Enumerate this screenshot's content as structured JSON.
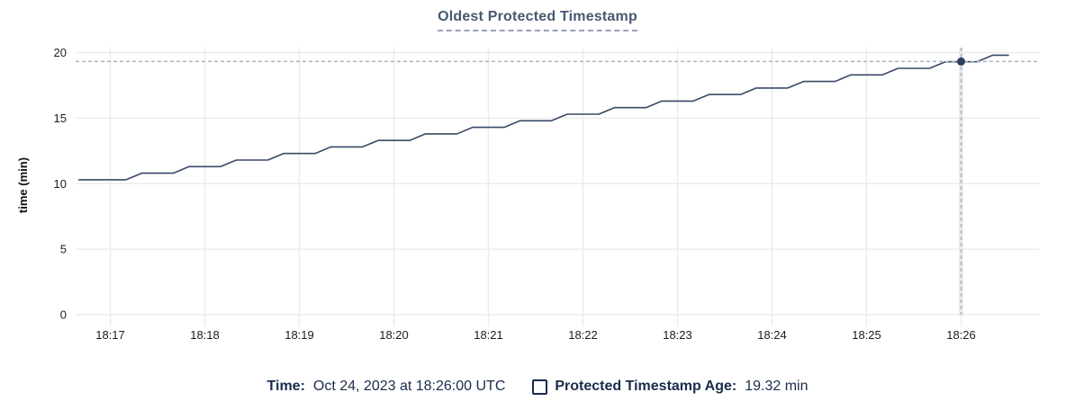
{
  "header": {
    "title": "Oldest Protected Timestamp"
  },
  "chart_data": {
    "type": "line",
    "title": "Oldest Protected Timestamp",
    "xlabel": "",
    "ylabel": "time (min)",
    "ylim": [
      0,
      20
    ],
    "y_ticks": [
      0,
      5,
      10,
      15,
      20
    ],
    "x_ticks": [
      "18:17",
      "18:18",
      "18:19",
      "18:20",
      "18:21",
      "18:22",
      "18:23",
      "18:24",
      "18:25",
      "18:26"
    ],
    "grid": true,
    "legend_position": "bottom",
    "series": [
      {
        "name": "Protected Timestamp Age",
        "color": "#394a67",
        "x_start": "18:16:40",
        "x_step_seconds": 10,
        "values": [
          10.3,
          10.3,
          10.3,
          10.3,
          10.8,
          10.8,
          10.8,
          11.3,
          11.3,
          11.3,
          11.8,
          11.8,
          11.8,
          12.3,
          12.3,
          12.3,
          12.8,
          12.8,
          12.8,
          13.3,
          13.3,
          13.3,
          13.8,
          13.8,
          13.8,
          14.3,
          14.3,
          14.3,
          14.8,
          14.8,
          14.8,
          15.3,
          15.3,
          15.3,
          15.8,
          15.8,
          15.8,
          16.3,
          16.3,
          16.3,
          16.8,
          16.8,
          16.8,
          17.3,
          17.3,
          17.3,
          17.8,
          17.8,
          17.8,
          18.3,
          18.3,
          18.3,
          18.8,
          18.8,
          18.8,
          19.3,
          19.3,
          19.3,
          19.8,
          19.8
        ]
      }
    ],
    "hover": {
      "time": "18:26:00",
      "value": 19.32
    }
  },
  "legend": {
    "time_label": "Time:",
    "time_value": "Oct 24, 2023 at 18:26:00 UTC",
    "series_label": "Protected Timestamp Age:",
    "series_value": "19.32 min"
  },
  "colors": {
    "title": "#475872",
    "legend_text": "#1a2b4d",
    "line": "#394a67",
    "hover_dot": "#2c3d5e",
    "crosshair": "#a6b3c0",
    "gridline": "#ececec",
    "cursor_column": "#e9edf0"
  }
}
